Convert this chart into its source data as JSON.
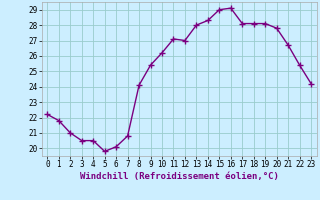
{
  "x": [
    0,
    1,
    2,
    3,
    4,
    5,
    6,
    7,
    8,
    9,
    10,
    11,
    12,
    13,
    14,
    15,
    16,
    17,
    18,
    19,
    20,
    21,
    22,
    23
  ],
  "y": [
    22.2,
    21.8,
    21.0,
    20.5,
    20.5,
    19.8,
    20.1,
    20.8,
    24.1,
    25.4,
    26.2,
    27.1,
    27.0,
    28.0,
    28.3,
    29.0,
    29.1,
    28.1,
    28.1,
    28.1,
    27.8,
    26.7,
    25.4,
    24.2
  ],
  "line_color": "#7B0080",
  "marker": "+",
  "marker_size": 4,
  "bg_color": "#cceeff",
  "grid_color": "#99cccc",
  "xlabel": "Windchill (Refroidissement éolien,°C)",
  "xlabel_fontsize": 6.5,
  "tick_fontsize": 5.5,
  "ylim": [
    19.5,
    29.5
  ],
  "yticks": [
    20,
    21,
    22,
    23,
    24,
    25,
    26,
    27,
    28,
    29
  ],
  "xticks": [
    0,
    1,
    2,
    3,
    4,
    5,
    6,
    7,
    8,
    9,
    10,
    11,
    12,
    13,
    14,
    15,
    16,
    17,
    18,
    19,
    20,
    21,
    22,
    23
  ],
  "line_width": 1.0
}
